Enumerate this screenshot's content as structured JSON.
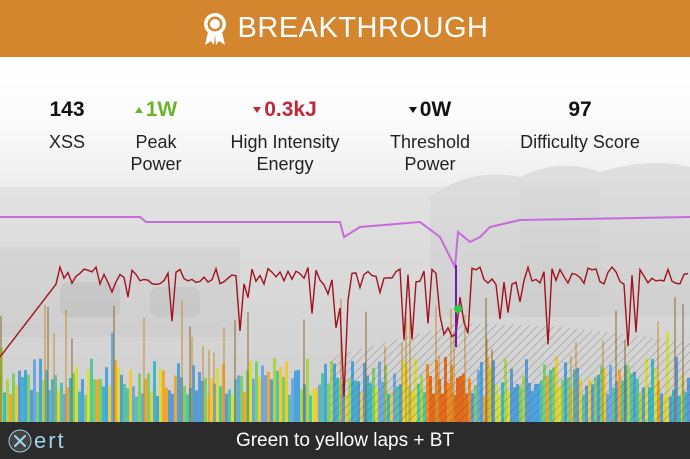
{
  "header": {
    "title": "BREAKTHROUGH",
    "icon": "award-ribbon-icon",
    "color": "#d4862f"
  },
  "stats": [
    {
      "value": "143",
      "label": "XSS",
      "trend": "none"
    },
    {
      "value": "1W",
      "label": "Peak\nPower",
      "trend": "up"
    },
    {
      "value": "0.3kJ",
      "label": "High Intensity\nEnergy",
      "trend": "down"
    },
    {
      "value": "0W",
      "label": "Threshold\nPower",
      "trend": "down-neutral"
    },
    {
      "value": "97",
      "label": "Difficulty Score",
      "trend": "none"
    }
  ],
  "colors": {
    "peak_power_line": "#c76bdb",
    "threshold_line": "#a0121e",
    "marker": "#2ecc40",
    "up": "#6ab42d",
    "down": "#c0283a"
  },
  "footer": {
    "logo": "xert",
    "workout": "Green to yellow laps + BT"
  }
}
